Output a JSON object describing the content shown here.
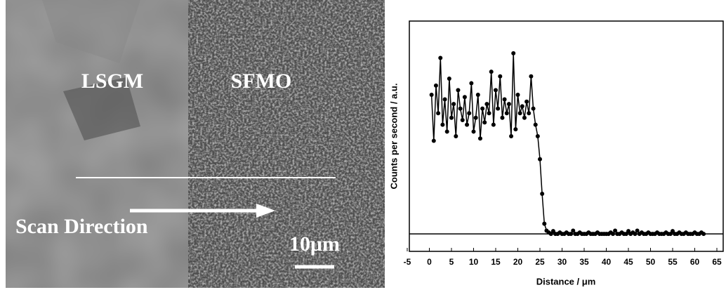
{
  "image": {
    "region_left": "LSGM",
    "region_right": "SFMO",
    "scan_label": "Scan Direction",
    "scale_bar": "10μm"
  },
  "chart_data": {
    "type": "line-scatter",
    "xlabel": "Distance / μm",
    "ylabel": "Counts per second / a.u.",
    "xlim": [
      -5,
      65
    ],
    "xticks": [
      -5,
      0,
      5,
      10,
      15,
      20,
      25,
      30,
      35,
      40,
      45,
      50,
      55,
      60,
      65
    ],
    "ylim": [
      0,
      100
    ],
    "reference_line": 7.6,
    "color": "#000000",
    "x": [
      0.5,
      1,
      1.5,
      2,
      2.5,
      3,
      3.5,
      4,
      4.5,
      5,
      5.5,
      6,
      6.5,
      7,
      7.5,
      8,
      8.5,
      9,
      9.5,
      10,
      10.5,
      11,
      11.5,
      12,
      12.5,
      13,
      13.5,
      14,
      14.5,
      15,
      15.5,
      16,
      16.5,
      17,
      17.5,
      18,
      18.5,
      19,
      19.5,
      20,
      20.5,
      21,
      21.5,
      22,
      22.5,
      23,
      23.5,
      24,
      24.5,
      25,
      25.5,
      26,
      26.5,
      27,
      27.5,
      28,
      28.5,
      29,
      29.5,
      30,
      30.5,
      31,
      31.5,
      32,
      32.5,
      33,
      33.5,
      34,
      34.5,
      35,
      35.5,
      36,
      36.5,
      37,
      37.5,
      38,
      38.5,
      39,
      39.5,
      40,
      40.5,
      41,
      41.5,
      42,
      42.5,
      43,
      43.5,
      44,
      44.5,
      45,
      45.5,
      46,
      46.5,
      47,
      47.5,
      48,
      48.5,
      49,
      49.5,
      50,
      50.5,
      51,
      51.5,
      52,
      52.5,
      53,
      53.5,
      54,
      54.5,
      55,
      55.5,
      56,
      56.5,
      57,
      57.5,
      58,
      58.5,
      59,
      59.5,
      60,
      60.5,
      61,
      61.5,
      62
    ],
    "values": [
      68,
      48,
      72,
      60,
      84,
      55,
      66,
      52,
      75,
      58,
      64,
      50,
      70,
      62,
      57,
      67,
      55,
      60,
      73,
      52,
      58,
      68,
      49,
      62,
      56,
      64,
      60,
      78,
      55,
      70,
      62,
      76,
      58,
      66,
      60,
      64,
      50,
      86,
      53,
      68,
      60,
      63,
      58,
      65,
      60,
      76,
      62,
      55,
      50,
      40,
      25,
      12,
      9,
      8.2,
      7.6,
      8.8,
      7.6,
      7.6,
      8.2,
      7.6,
      7.6,
      8.2,
      7.6,
      7.6,
      9,
      7.6,
      7.6,
      8.2,
      7.6,
      7.6,
      7.6,
      8.2,
      7.6,
      7.6,
      7.6,
      8.2,
      7.6,
      7.6,
      7.6,
      7.6,
      7.6,
      8.2,
      7.6,
      9,
      7.6,
      7.6,
      8.2,
      7.6,
      7.6,
      8.8,
      7.6,
      8.2,
      7.6,
      9,
      7.6,
      8.2,
      7.6,
      7.6,
      8.2,
      7.6,
      7.6,
      7.6,
      8.2,
      7.6,
      7.6,
      7.6,
      8.2,
      7.6,
      7.6,
      8.8,
      7.6,
      7.6,
      8.2,
      7.6,
      7.6,
      8.2,
      7.6,
      7.6,
      7.6,
      8.2,
      7.6,
      7.6,
      8.2,
      7.6
    ]
  }
}
